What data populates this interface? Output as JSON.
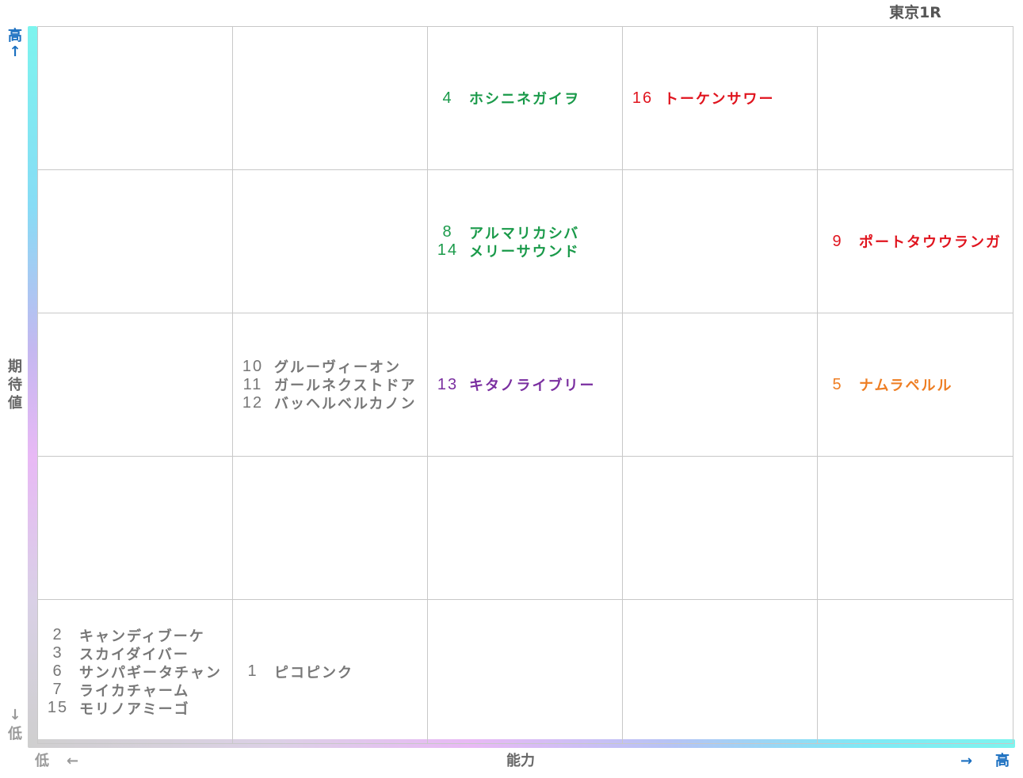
{
  "title": "東京1R",
  "axes": {
    "y_label": "期待値",
    "y_high": "高",
    "y_high_arrow": "↑",
    "y_low": "低",
    "y_low_arrow": "↓",
    "x_label": "能力",
    "x_low": "低",
    "x_low_arrow": "←",
    "x_high": "高",
    "x_high_arrow": "→"
  },
  "colors": {
    "gray": "#777777",
    "green": "#1a9a4a",
    "red": "#e0141e",
    "purple": "#7a2fa0",
    "orange": "#ee7d22"
  },
  "chart_data": {
    "type": "table",
    "title": "東京1R",
    "xlabel": "能力",
    "ylabel": "期待値",
    "columns": 5,
    "rows": 5,
    "cells": [
      {
        "row": 1,
        "col": 3,
        "color": "green",
        "entries": [
          {
            "num": "4",
            "name": "ホシニネガイヲ"
          }
        ]
      },
      {
        "row": 1,
        "col": 4,
        "color": "red",
        "entries": [
          {
            "num": "16",
            "name": "トーケンサワー"
          }
        ]
      },
      {
        "row": 2,
        "col": 3,
        "color": "green",
        "entries": [
          {
            "num": "8",
            "name": "アルマリカシバ"
          },
          {
            "num": "14",
            "name": "メリーサウンド"
          }
        ]
      },
      {
        "row": 2,
        "col": 5,
        "color": "red",
        "entries": [
          {
            "num": "9",
            "name": "ポートタウウランガ"
          }
        ]
      },
      {
        "row": 3,
        "col": 2,
        "color": "gray",
        "entries": [
          {
            "num": "10",
            "name": "グルーヴィーオン"
          },
          {
            "num": "11",
            "name": "ガールネクストドア"
          },
          {
            "num": "12",
            "name": "バッヘルベルカノン"
          }
        ]
      },
      {
        "row": 3,
        "col": 3,
        "color": "purple",
        "entries": [
          {
            "num": "13",
            "name": "キタノライブリー"
          }
        ]
      },
      {
        "row": 3,
        "col": 5,
        "color": "orange",
        "entries": [
          {
            "num": "5",
            "name": "ナムラペルル"
          }
        ]
      },
      {
        "row": 5,
        "col": 1,
        "color": "gray",
        "entries": [
          {
            "num": "2",
            "name": "キャンディブーケ"
          },
          {
            "num": "3",
            "name": "スカイダイバー"
          },
          {
            "num": "6",
            "name": "サンパギータチャン"
          },
          {
            "num": "7",
            "name": "ライカチャーム"
          },
          {
            "num": "15",
            "name": "モリノアミーゴ"
          }
        ]
      },
      {
        "row": 5,
        "col": 2,
        "color": "gray",
        "entries": [
          {
            "num": "1",
            "name": "ピコピンク"
          }
        ]
      }
    ]
  }
}
